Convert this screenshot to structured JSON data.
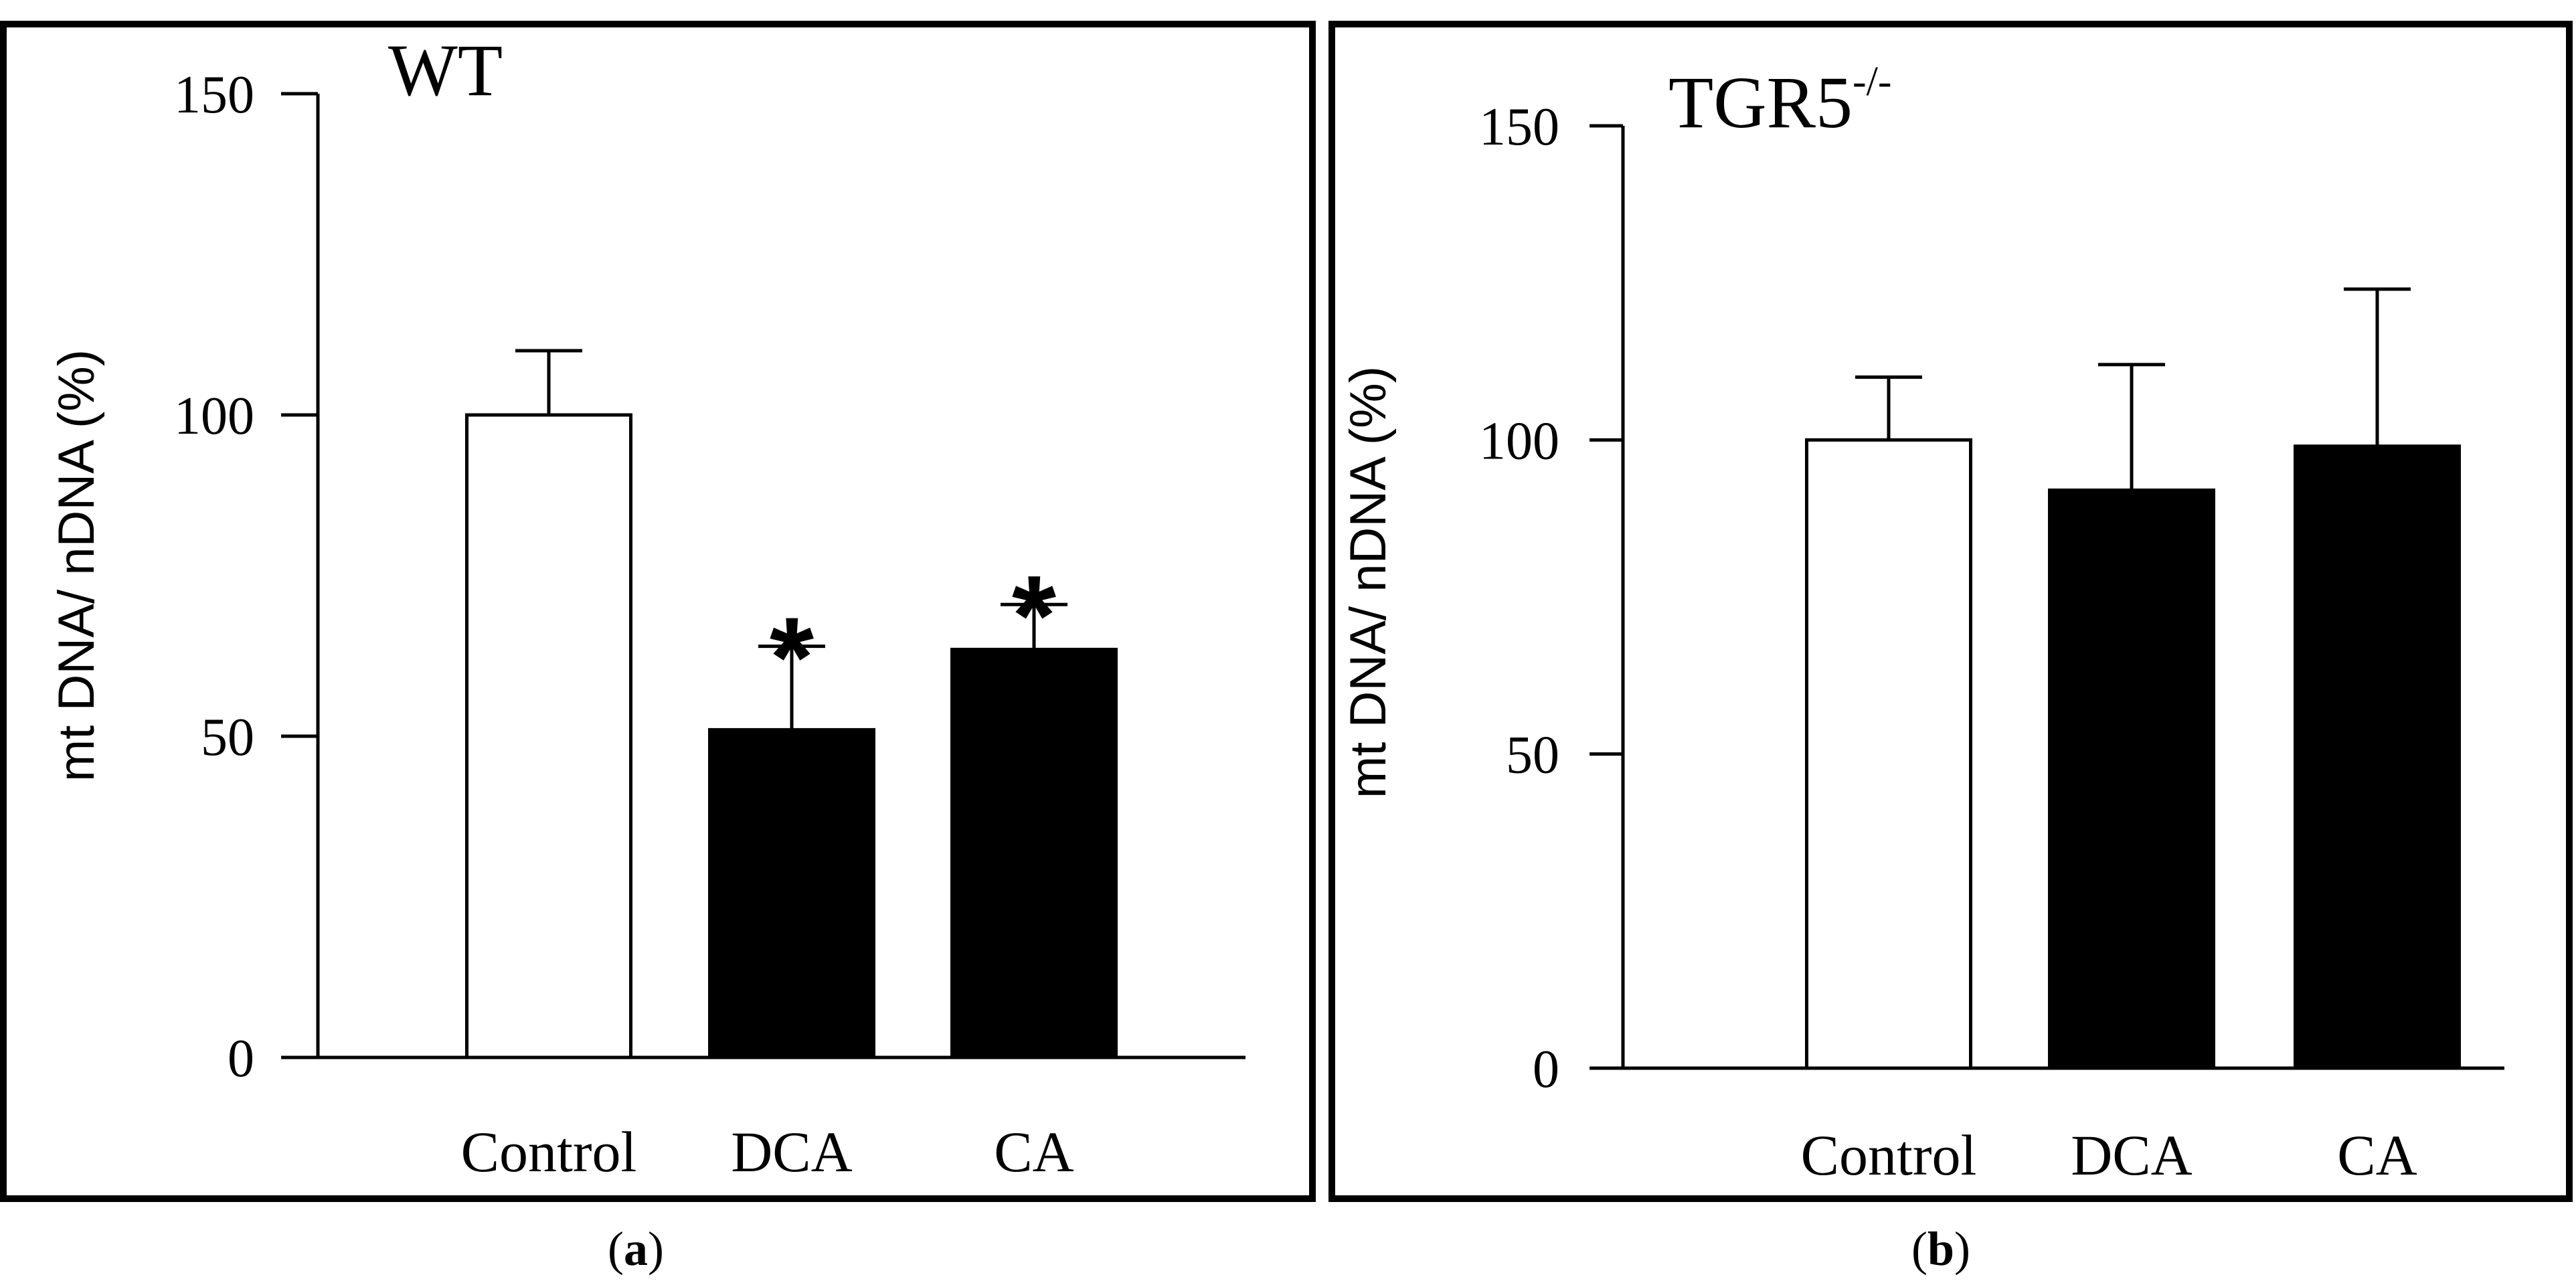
{
  "chart_data": [
    {
      "type": "bar",
      "title": "WT",
      "ylabel": "mt DNA/ nDNA (%)",
      "xlabel": "",
      "ylim": [
        0,
        150
      ],
      "yticks": [
        "0",
        "50",
        "100",
        "150"
      ],
      "categories": [
        "Control",
        "DCA",
        "CA"
      ],
      "values": [
        100,
        51,
        63.5
      ],
      "errors": [
        10,
        13,
        7
      ],
      "fill_colors": [
        "#ffffff",
        "#000000",
        "#000000"
      ],
      "significance": [
        "",
        "*",
        "*"
      ],
      "panel_caption": {
        "open": "(",
        "letter": "a",
        "close": ")"
      }
    },
    {
      "type": "bar",
      "title": "TGR5",
      "title_superscript": "-/-",
      "ylabel": "mt DNA/ nDNA (%)",
      "xlabel": "",
      "ylim": [
        0,
        150
      ],
      "yticks": [
        "0",
        "50",
        "100",
        "150"
      ],
      "categories": [
        "Control",
        "DCA",
        "CA"
      ],
      "values": [
        100,
        92,
        99
      ],
      "errors": [
        10,
        20,
        25
      ],
      "fill_colors": [
        "#ffffff",
        "#000000",
        "#000000"
      ],
      "significance": [
        "",
        "",
        ""
      ],
      "panel_caption": {
        "open": "(",
        "letter": "b",
        "close": ")"
      }
    }
  ]
}
